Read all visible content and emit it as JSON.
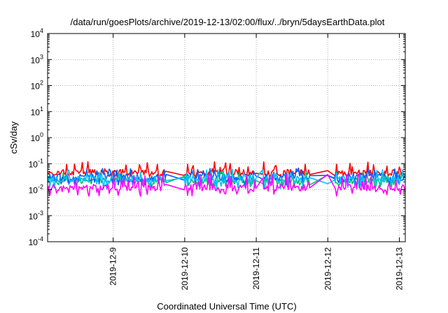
{
  "chart_data": {
    "type": "line",
    "title": "/data/run/goesPlots/archive/2019-12-13/02:00/flux/../bryn/5daysEarthData.plot",
    "xlabel": "Coordinated Universal Time (UTC)",
    "ylabel": "cSv/day",
    "y_scale": "log",
    "ylim": [
      0.0001,
      10000
    ],
    "y_ticks": [
      {
        "value": 0.0001,
        "base": "10",
        "exp": "-4"
      },
      {
        "value": 0.001,
        "base": "10",
        "exp": "-3"
      },
      {
        "value": 0.01,
        "base": "10",
        "exp": "-2"
      },
      {
        "value": 0.1,
        "base": "10",
        "exp": "-1"
      },
      {
        "value": 1,
        "base": "10",
        "exp": "0"
      },
      {
        "value": 10,
        "base": "10",
        "exp": "1"
      },
      {
        "value": 100,
        "base": "10",
        "exp": "2"
      },
      {
        "value": 1000,
        "base": "10",
        "exp": "3"
      },
      {
        "value": 10000,
        "base": "10",
        "exp": "4"
      }
    ],
    "xlim": [
      "2019-12-08T02:00",
      "2019-12-13T02:00"
    ],
    "x_ticks": [
      "2019-12-9",
      "2019-12-10",
      "2019-12-11",
      "2019-12-12",
      "2019-12-13"
    ],
    "x_tick_dates": [
      "2019-12-09T00:00",
      "2019-12-10T00:00",
      "2019-12-11T00:00",
      "2019-12-12T00:00",
      "2019-12-13T00:00"
    ],
    "grid": true,
    "legend": "none",
    "data_gaps": [
      [
        "2019-12-09T18:00",
        "2019-12-09T23:40"
      ],
      [
        "2019-12-11T00:10",
        "2019-12-11T02:00"
      ],
      [
        "2019-12-11T18:00",
        "2019-12-11T23:40"
      ],
      [
        "2019-12-12T00:10",
        "2019-12-12T02:00"
      ]
    ],
    "series": [
      {
        "color": "#ff0000",
        "base": 0.045,
        "spike_max": 0.12,
        "dip_min": 0.03
      },
      {
        "color": "#00c060",
        "base": 0.022,
        "spike_max": 0.05,
        "dip_min": 0.012
      },
      {
        "color": "#0060ff",
        "base": 0.03,
        "spike_max": 0.065,
        "dip_min": 0.015
      },
      {
        "color": "#00c0ff",
        "base": 0.025,
        "spike_max": 0.06,
        "dip_min": 0.01
      },
      {
        "color": "#ff00ff",
        "base": 0.012,
        "spike_max": 0.04,
        "dip_min": 0.0055
      }
    ]
  }
}
